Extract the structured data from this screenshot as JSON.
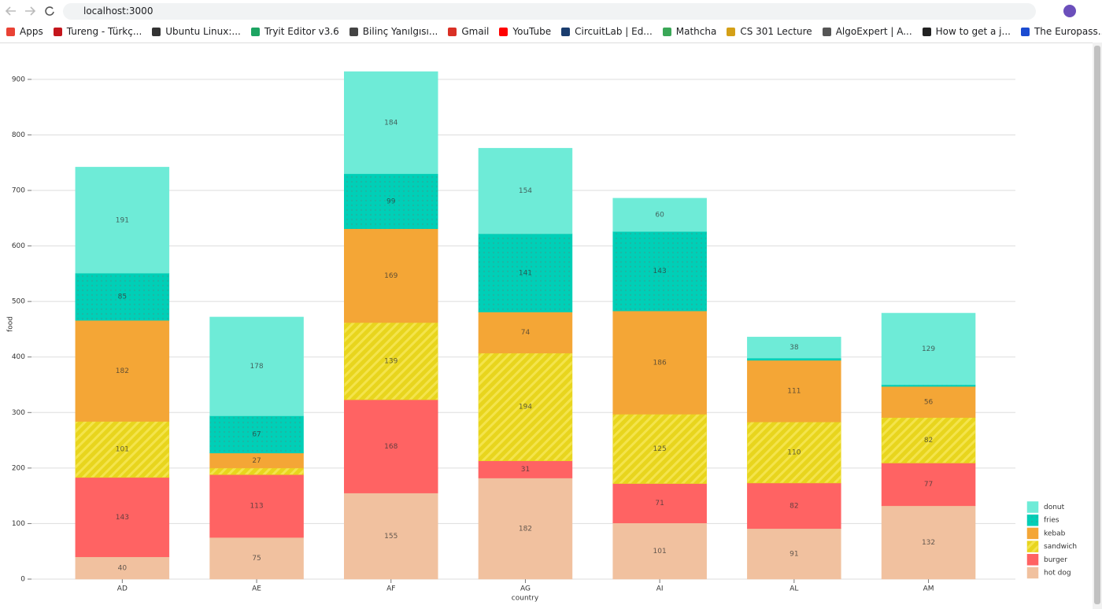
{
  "browser": {
    "url": "localhost:3000",
    "bookmarks": [
      "Apps",
      "Tureng - Türkç...",
      "Ubuntu Linux:...",
      "Tryit Editor v3.6",
      "Bilinç Yanılgısı...",
      "Gmail",
      "YouTube",
      "CircuitLab | Ed...",
      "Mathcha",
      "CS 301 Lecture",
      "AlgoExpert | A...",
      "How to get a j...",
      "The Europass..."
    ]
  },
  "chart_data": {
    "type": "stacked-bar",
    "x_label": "country",
    "y_label": "food",
    "categories": [
      "AD",
      "AE",
      "AF",
      "AG",
      "AI",
      "AL",
      "AM"
    ],
    "series": [
      {
        "name": "hot dog",
        "color": "#f1c19f",
        "values": [
          40,
          75,
          155,
          182,
          101,
          91,
          132
        ]
      },
      {
        "name": "burger",
        "color": "#ff6363",
        "values": [
          143,
          113,
          168,
          31,
          71,
          82,
          77
        ]
      },
      {
        "name": "sandwich",
        "color": "#e8d51d",
        "pattern": "lines",
        "values": [
          101,
          12,
          139,
          194,
          125,
          110,
          82
        ]
      },
      {
        "name": "kebab",
        "color": "#f4a636",
        "values": [
          182,
          27,
          169,
          74,
          186,
          111,
          56
        ]
      },
      {
        "name": "fries",
        "color": "#00cfb7",
        "pattern": "dots",
        "values": [
          85,
          67,
          99,
          141,
          143,
          4,
          3
        ]
      },
      {
        "name": "donut",
        "color": "#6eebd7",
        "values": [
          191,
          178,
          184,
          154,
          60,
          38,
          129
        ]
      }
    ],
    "ylim": [
      0,
      914
    ],
    "yticks": [
      0,
      100,
      200,
      300,
      400,
      500,
      600,
      700,
      800,
      900
    ],
    "grid": true,
    "legend": "bottom-right"
  }
}
